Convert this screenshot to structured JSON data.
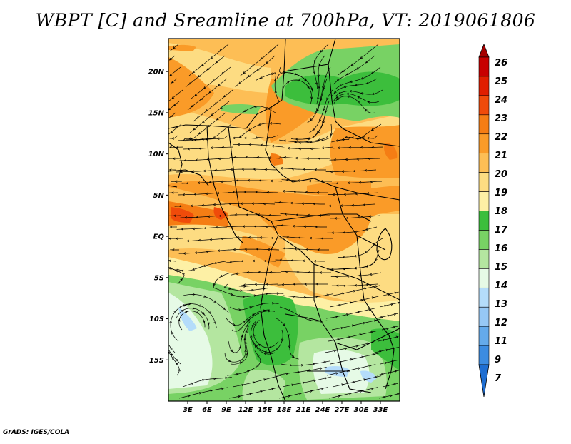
{
  "title": "WBPT [C] and Sreamline at 700hPa, VT: 2019061806",
  "footer": "GrADS: IGES/COLA",
  "map": {
    "variable": "WBPT",
    "units": "C",
    "level": "700hPa",
    "valid_time": "2019061806",
    "lon_range": [
      0,
      36
    ],
    "lat_range": [
      -20,
      24
    ],
    "lon_ticks": [
      {
        "value": 3,
        "label": "3E"
      },
      {
        "value": 6,
        "label": "6E"
      },
      {
        "value": 9,
        "label": "9E"
      },
      {
        "value": 12,
        "label": "12E"
      },
      {
        "value": 15,
        "label": "15E"
      },
      {
        "value": 18,
        "label": "18E"
      },
      {
        "value": 21,
        "label": "21E"
      },
      {
        "value": 24,
        "label": "24E"
      },
      {
        "value": 27,
        "label": "27E"
      },
      {
        "value": 30,
        "label": "30E"
      },
      {
        "value": 33,
        "label": "33E"
      }
    ],
    "lat_ticks": [
      {
        "value": 20,
        "label": "20N"
      },
      {
        "value": 15,
        "label": "15N"
      },
      {
        "value": 10,
        "label": "10N"
      },
      {
        "value": 5,
        "label": "5N"
      },
      {
        "value": 0,
        "label": "EQ"
      },
      {
        "value": -5,
        "label": "5S"
      },
      {
        "value": -10,
        "label": "10S"
      },
      {
        "value": -15,
        "label": "15S"
      }
    ]
  },
  "colorbar": {
    "levels": [
      {
        "label": "26",
        "color": "#a50000"
      },
      {
        "label": "25",
        "color": "#c80000"
      },
      {
        "label": "24",
        "color": "#e01e00"
      },
      {
        "label": "23",
        "color": "#f04b0a"
      },
      {
        "label": "22",
        "color": "#f57d14"
      },
      {
        "label": "21",
        "color": "#fa9b28"
      },
      {
        "label": "20",
        "color": "#fdbe55"
      },
      {
        "label": "19",
        "color": "#fddc82"
      },
      {
        "label": "18",
        "color": "#fdf0a5"
      },
      {
        "label": "17",
        "color": "#3cbe3c"
      },
      {
        "label": "16",
        "color": "#78d264"
      },
      {
        "label": "15",
        "color": "#b4e6a0"
      },
      {
        "label": "14",
        "color": "#e6fae6"
      },
      {
        "label": "13",
        "color": "#b4dcfa"
      },
      {
        "label": "12",
        "color": "#96c8f5"
      },
      {
        "label": "11",
        "color": "#64aaeb"
      },
      {
        "label": "9",
        "color": "#3c8ce1"
      },
      {
        "label": "7",
        "color": "#1e6ed2"
      }
    ]
  }
}
